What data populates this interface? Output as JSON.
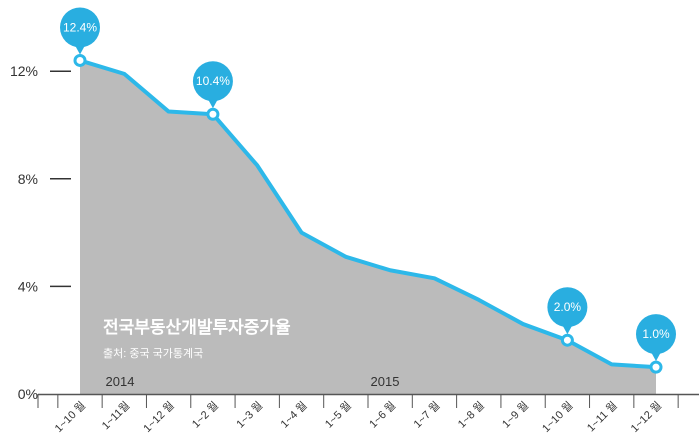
{
  "chart_data": {
    "type": "area",
    "title": "전국부동산개발투자증가율",
    "source": "출처: 중국 국가통계국",
    "year_labels": [
      {
        "text": "2014",
        "category_index": 0
      },
      {
        "text": "2015",
        "category_index": 7
      }
    ],
    "categories": [
      "1~10 월",
      "1~11월",
      "1~12 월",
      "1~2 월",
      "1~3 월",
      "1~4 월",
      "1~5 월",
      "1~6 월",
      "1~7 월",
      "1~8 월",
      "1~9 월",
      "1~10 월",
      "1~11 월",
      "1~12 월"
    ],
    "values": [
      12.4,
      11.9,
      10.5,
      10.4,
      8.5,
      6.0,
      5.1,
      4.6,
      4.3,
      3.5,
      2.6,
      2.0,
      1.1,
      1.0
    ],
    "callouts": [
      {
        "index": 0,
        "label": "12.4%"
      },
      {
        "index": 3,
        "label": "10.4%"
      },
      {
        "index": 11,
        "label": "2.0%"
      },
      {
        "index": 13,
        "label": "1.0%"
      }
    ],
    "ylim": [
      0,
      14
    ],
    "yticks": [
      {
        "value": 0,
        "label": "0%"
      },
      {
        "value": 4,
        "label": "4%"
      },
      {
        "value": 8,
        "label": "8%"
      },
      {
        "value": 12,
        "label": "12%"
      }
    ],
    "colors": {
      "area": "#bbbbbb",
      "line": "#2db8e9",
      "callout": "#29aee0",
      "axis": "#555555"
    }
  }
}
